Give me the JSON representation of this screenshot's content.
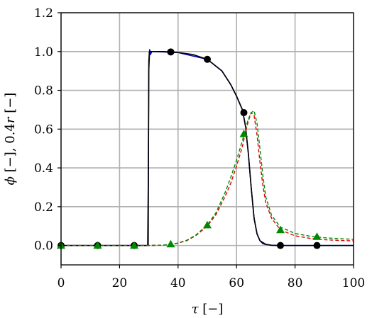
{
  "chart_data": {
    "type": "line",
    "xlabel": {
      "symbol": "τ",
      "unit": " [−]"
    },
    "ylabel": {
      "sym1": "ϕ",
      "mid": " [−], 0.4",
      "sym2": "r",
      "unit": " [−]"
    },
    "xlim": [
      0,
      100
    ],
    "ylim": [
      -0.1,
      1.2
    ],
    "xticks": [
      "0",
      "20",
      "40",
      "60",
      "80",
      "100"
    ],
    "yticks": [
      "0.0",
      "0.2",
      "0.4",
      "0.6",
      "0.8",
      "1.0",
      "1.2"
    ],
    "grid": true,
    "series": [
      {
        "style": "solid",
        "color": "#0000cc",
        "x": [
          0,
          29.6,
          29.8,
          30.0,
          30.3,
          30.6,
          31,
          31.5,
          32,
          40,
          50,
          55,
          58,
          60,
          62,
          63,
          64,
          65,
          66,
          67,
          68,
          70,
          72,
          75,
          80,
          100
        ],
        "y": [
          0,
          0,
          0.3,
          0.9,
          1.01,
          0.985,
          1.0,
          1.0,
          1.0,
          0.995,
          0.96,
          0.9,
          0.83,
          0.77,
          0.7,
          0.62,
          0.48,
          0.3,
          0.14,
          0.06,
          0.025,
          0.006,
          0.001,
          0,
          0,
          0
        ]
      },
      {
        "style": "solid",
        "color": "#000000",
        "x": [
          0,
          29.8,
          29.9,
          30.0,
          30.2,
          31,
          35,
          40,
          45,
          50,
          55,
          58,
          60,
          62,
          63,
          64,
          65,
          66,
          67,
          68,
          69,
          70,
          72,
          75,
          80,
          100
        ],
        "y": [
          0,
          0,
          0.5,
          0.95,
          1.0,
          1.0,
          1.0,
          0.995,
          0.985,
          0.96,
          0.9,
          0.83,
          0.77,
          0.7,
          0.62,
          0.48,
          0.3,
          0.14,
          0.06,
          0.025,
          0.01,
          0.005,
          0.001,
          0,
          0,
          0
        ]
      },
      {
        "style": "dashed",
        "color": "#dd0000",
        "x": [
          0,
          30,
          35,
          38,
          40,
          43,
          46,
          50,
          53,
          56,
          58,
          60,
          62,
          63,
          64,
          65,
          66,
          67,
          68,
          69,
          70,
          72,
          75,
          80,
          85,
          90,
          95,
          100
        ],
        "y": [
          0,
          0,
          0.002,
          0.006,
          0.012,
          0.025,
          0.05,
          0.1,
          0.16,
          0.25,
          0.32,
          0.41,
          0.51,
          0.58,
          0.64,
          0.685,
          0.67,
          0.57,
          0.43,
          0.31,
          0.22,
          0.14,
          0.08,
          0.05,
          0.037,
          0.03,
          0.026,
          0.024
        ]
      },
      {
        "style": "dashed",
        "color": "#008800",
        "x": [
          0,
          30,
          35,
          38,
          40,
          43,
          46,
          50,
          53,
          56,
          58,
          60,
          62,
          63,
          64,
          65,
          66,
          67,
          68,
          69,
          70,
          72,
          75,
          80,
          85,
          90,
          95,
          100
        ],
        "y": [
          0,
          0,
          0.002,
          0.007,
          0.013,
          0.027,
          0.053,
          0.105,
          0.17,
          0.27,
          0.35,
          0.44,
          0.54,
          0.6,
          0.65,
          0.685,
          0.695,
          0.63,
          0.5,
          0.36,
          0.25,
          0.155,
          0.095,
          0.062,
          0.048,
          0.04,
          0.035,
          0.032
        ]
      }
    ],
    "markers": [
      {
        "shape": "circle",
        "color": "#000000",
        "x": [
          0,
          12.5,
          25,
          37.5,
          50,
          62.5,
          75,
          87.5
        ],
        "y": [
          0,
          0,
          0,
          0.998,
          0.96,
          0.685,
          0,
          0
        ]
      },
      {
        "shape": "triangle",
        "color": "#008800",
        "x": [
          0,
          12.5,
          25,
          37.5,
          50,
          62.5,
          75,
          87.5
        ],
        "y": [
          0,
          0,
          0,
          0.007,
          0.105,
          0.575,
          0.08,
          0.045
        ]
      }
    ]
  }
}
